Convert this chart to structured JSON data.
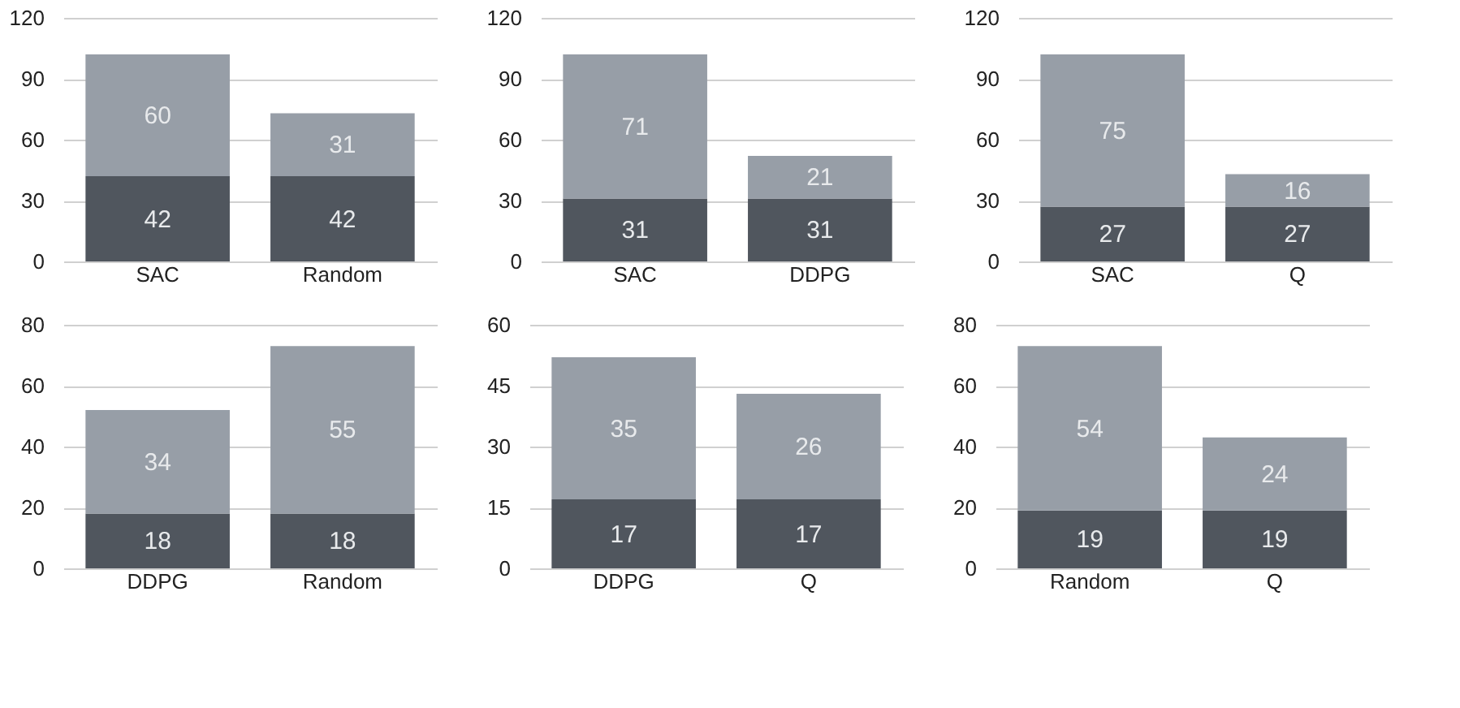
{
  "chart_data": [
    {
      "type": "bar",
      "stacked": true,
      "categories": [
        "SAC",
        "Random"
      ],
      "series": [
        {
          "color": "#50565e",
          "values": [
            42,
            42
          ]
        },
        {
          "color": "#979ea7",
          "values": [
            60,
            31
          ]
        }
      ],
      "ylim": [
        0,
        120
      ],
      "yticks": [
        0,
        30,
        60,
        90,
        120
      ],
      "grid": "y",
      "data_labels": true
    },
    {
      "type": "bar",
      "stacked": true,
      "categories": [
        "SAC",
        "DDPG"
      ],
      "series": [
        {
          "color": "#50565e",
          "values": [
            31,
            31
          ]
        },
        {
          "color": "#979ea7",
          "values": [
            71,
            21
          ]
        }
      ],
      "ylim": [
        0,
        120
      ],
      "yticks": [
        0,
        30,
        60,
        90,
        120
      ],
      "grid": "y",
      "data_labels": true
    },
    {
      "type": "bar",
      "stacked": true,
      "categories": [
        "SAC",
        "Q"
      ],
      "series": [
        {
          "color": "#50565e",
          "values": [
            27,
            27
          ]
        },
        {
          "color": "#979ea7",
          "values": [
            75,
            16
          ]
        }
      ],
      "ylim": [
        0,
        120
      ],
      "yticks": [
        0,
        30,
        60,
        90,
        120
      ],
      "grid": "y",
      "data_labels": true
    },
    {
      "type": "bar",
      "stacked": true,
      "categories": [
        "DDPG",
        "Random"
      ],
      "series": [
        {
          "color": "#50565e",
          "values": [
            18,
            18
          ]
        },
        {
          "color": "#979ea7",
          "values": [
            34,
            55
          ]
        }
      ],
      "ylim": [
        0,
        80
      ],
      "yticks": [
        0,
        20,
        40,
        60,
        80
      ],
      "grid": "y",
      "data_labels": true
    },
    {
      "type": "bar",
      "stacked": true,
      "categories": [
        "DDPG",
        "Q"
      ],
      "series": [
        {
          "color": "#50565e",
          "values": [
            17,
            17
          ]
        },
        {
          "color": "#979ea7",
          "values": [
            35,
            26
          ]
        }
      ],
      "ylim": [
        0,
        60
      ],
      "yticks": [
        0,
        15,
        30,
        45,
        60
      ],
      "grid": "y",
      "data_labels": true
    },
    {
      "type": "bar",
      "stacked": true,
      "categories": [
        "Random",
        "Q"
      ],
      "series": [
        {
          "color": "#50565e",
          "values": [
            19,
            19
          ]
        },
        {
          "color": "#979ea7",
          "values": [
            54,
            24
          ]
        }
      ],
      "ylim": [
        0,
        80
      ],
      "yticks": [
        0,
        20,
        40,
        60,
        80
      ],
      "grid": "y",
      "data_labels": true
    }
  ]
}
